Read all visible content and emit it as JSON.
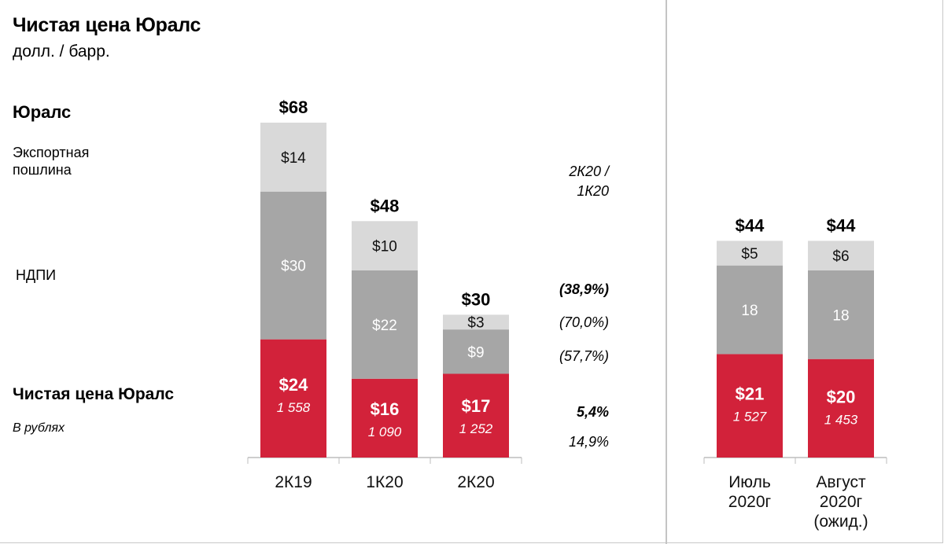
{
  "header": {
    "title": "Чистая цена Юралс",
    "subtitle": "долл. / барр."
  },
  "row_labels": {
    "urals": "Юралс",
    "export_duty": "Экспортная пошлина",
    "ndpi": "НДПИ",
    "net_price": "Чистая цена Юралс",
    "rubles": "В рублях"
  },
  "change_column": {
    "header_line1": "2К20 /",
    "header_line2": "1К20",
    "urals": "(38,9%)",
    "export_duty": "(70,0%)",
    "ndpi": "(57,7%)",
    "net_price": "5,4%",
    "rubles": "14,9%"
  },
  "colors": {
    "net_price": "#d2223a",
    "ndpi": "#a6a6a6",
    "export_duty": "#d9d9d9"
  },
  "chart_data": {
    "type": "bar",
    "stacked": true,
    "categories": [
      "2К19",
      "1К20",
      "2К20",
      "Июль 2020г",
      "Август 2020г (ожид.)"
    ],
    "category_lines": [
      [
        "2К19"
      ],
      [
        "1К20"
      ],
      [
        "2К20"
      ],
      [
        "Июль",
        "2020г"
      ],
      [
        "Август",
        "2020г",
        "(ожид.)"
      ]
    ],
    "series": [
      {
        "name": "Чистая цена Юралс",
        "values": [
          24,
          16,
          17,
          21,
          20
        ],
        "labels": [
          "$24",
          "$16",
          "$17",
          "$21",
          "$20"
        ],
        "color": "#d2223a"
      },
      {
        "name": "НДПИ",
        "values": [
          30,
          22,
          9,
          18,
          18
        ],
        "labels": [
          "$30",
          "$22",
          "$9",
          "18",
          "18"
        ],
        "color": "#a6a6a6"
      },
      {
        "name": "Экспортная пошлина",
        "values": [
          14,
          10,
          3,
          5,
          6
        ],
        "labels": [
          "$14",
          "$10",
          "$3",
          "$5",
          "$6"
        ],
        "color": "#d9d9d9"
      }
    ],
    "totals": [
      68,
      48,
      30,
      44,
      44
    ],
    "total_labels": [
      "$68",
      "$48",
      "$30",
      "$44",
      "$44"
    ],
    "rub_values": [
      "1 558",
      "1 090",
      "1 252",
      "1 527",
      "1 453"
    ],
    "ylim": [
      0,
      68
    ]
  }
}
